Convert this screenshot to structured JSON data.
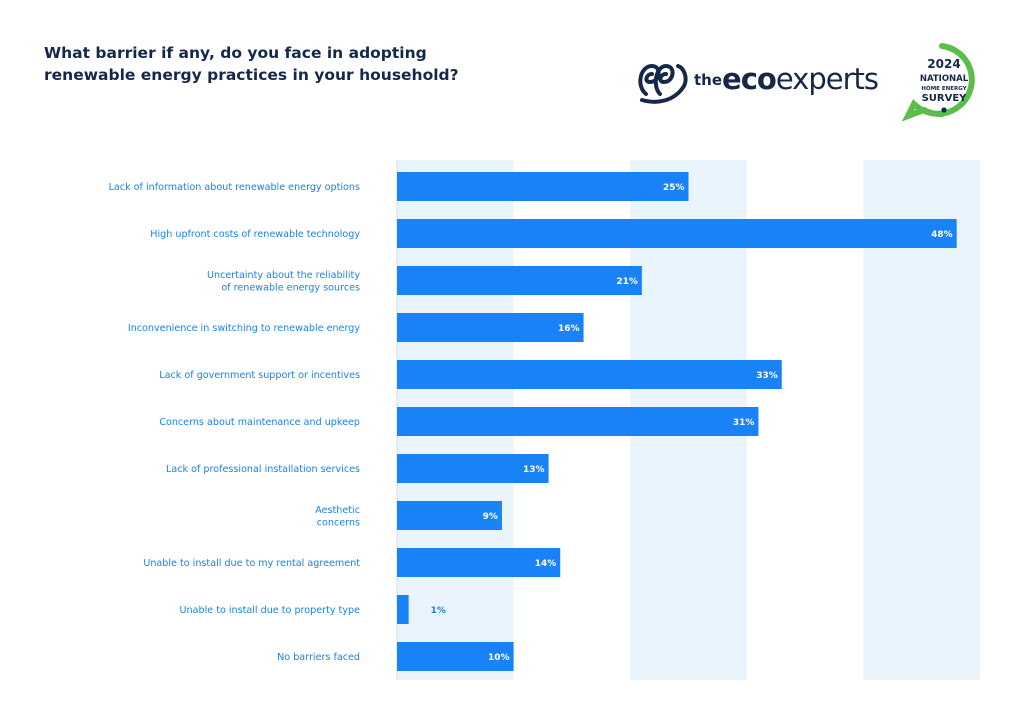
{
  "title": "What barrier if any, do you face in adopting renewable energy practices in your household?",
  "logo": {
    "name_small": "the",
    "name_bold": "eco",
    "name_light": "experts"
  },
  "badge": {
    "year": "2024",
    "line1": "NATIONAL",
    "line2": "HOME ENERGY",
    "line3": "SURVEY"
  },
  "colors": {
    "bar": "#1a82f7",
    "band": "#eaf4fd",
    "title": "#16284a",
    "label": "#1a82e8",
    "badge_green": "#5cbd4a"
  },
  "chart_data": {
    "type": "bar",
    "orientation": "horizontal",
    "categories": [
      [
        "Lack of information about renewable energy options"
      ],
      [
        "High upfront costs of  renewable technology"
      ],
      [
        "Uncertainty about the reliability",
        "of  renewable energy sources"
      ],
      [
        "Inconvenience in switching to renewable energy"
      ],
      [
        "Lack of government support or incentives"
      ],
      [
        "Concerns about maintenance and upkeep"
      ],
      [
        "Lack of professional installation services"
      ],
      [
        "Aesthetic",
        "concerns"
      ],
      [
        "Unable to install due to my rental agreement"
      ],
      [
        "Unable to install due to property type"
      ],
      [
        "No barriers faced"
      ]
    ],
    "values": [
      25,
      48,
      21,
      16,
      33,
      31,
      13,
      9,
      14,
      1,
      10
    ],
    "value_labels": [
      "25%",
      "48%",
      "21%",
      "16%",
      "33%",
      "31%",
      "13%",
      "9%",
      "14%",
      "1%",
      "10%"
    ],
    "xlim": [
      0,
      50
    ],
    "x_tick_step": 10,
    "background_bands": "alternating",
    "xlabel": "",
    "ylabel": ""
  }
}
